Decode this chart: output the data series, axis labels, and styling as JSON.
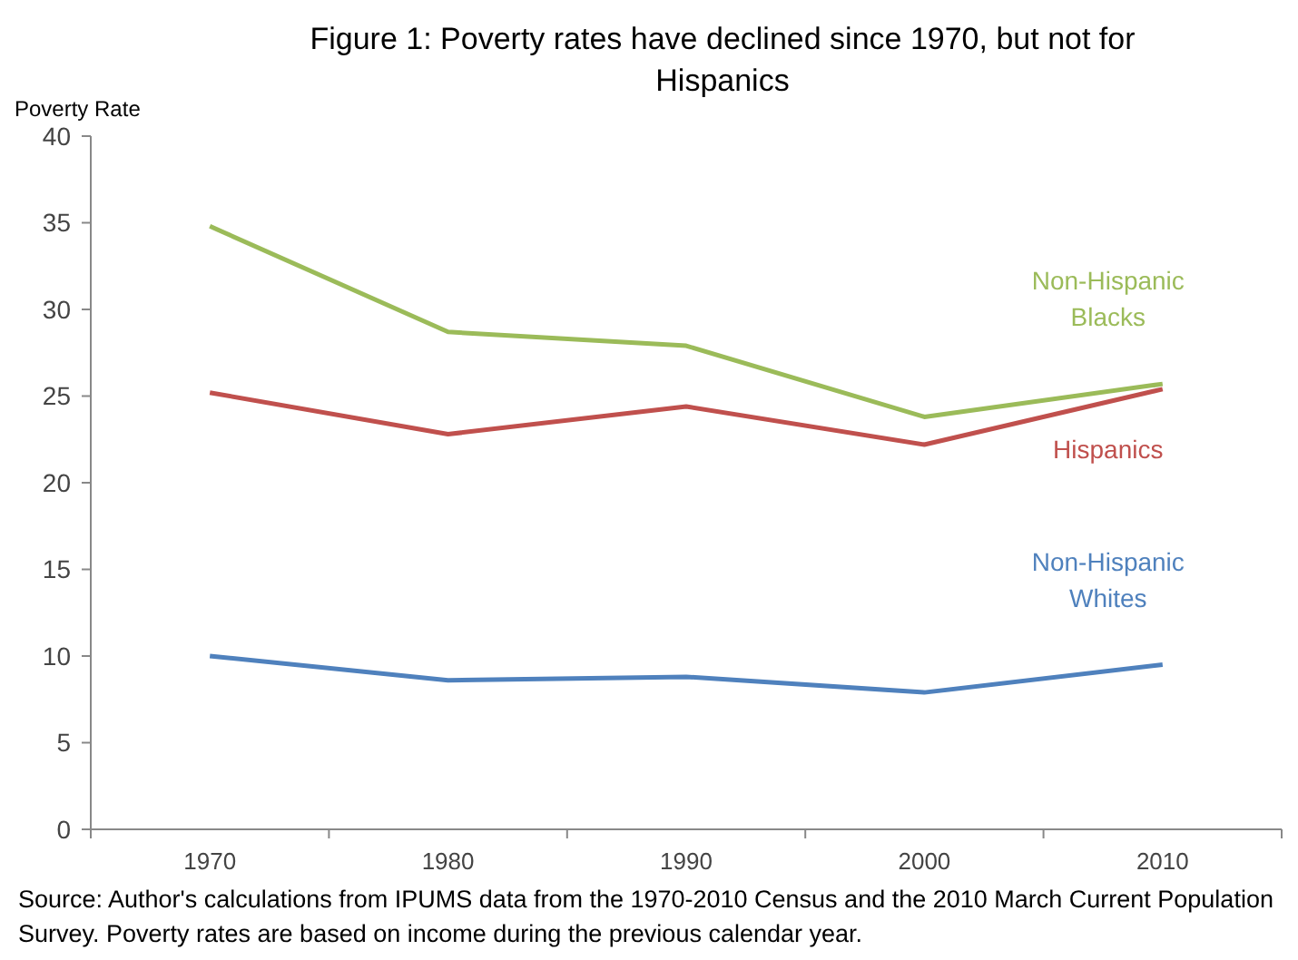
{
  "chart_data": {
    "type": "line",
    "title": "Figure 1: Poverty rates have declined since 1970, but not for Hispanics",
    "ylabel": "Poverty Rate",
    "categories": [
      "1970",
      "1980",
      "1990",
      "2000",
      "2010"
    ],
    "series": [
      {
        "name": "Non-Hispanic Blacks",
        "color": "#9bbb59",
        "values": [
          34.8,
          28.7,
          27.9,
          23.8,
          25.7
        ]
      },
      {
        "name": "Hispanics",
        "color": "#c0504d",
        "values": [
          25.2,
          22.8,
          24.4,
          22.2,
          25.4
        ]
      },
      {
        "name": "Non-Hispanic Whites",
        "color": "#4f81bd",
        "values": [
          10.0,
          8.6,
          8.8,
          7.9,
          9.5
        ]
      }
    ],
    "ylim": [
      0,
      40
    ],
    "yticks": [
      0,
      5,
      10,
      15,
      20,
      25,
      30,
      35,
      40
    ],
    "legend": false,
    "grid": false,
    "marker": "none",
    "line_style": "solid",
    "annotations": [
      "Source: Author's calculations from IPUMS data from the 1970-2010 Census and the 2010 March Current Population Survey. Poverty rates are based on income during the previous calendar year."
    ]
  }
}
